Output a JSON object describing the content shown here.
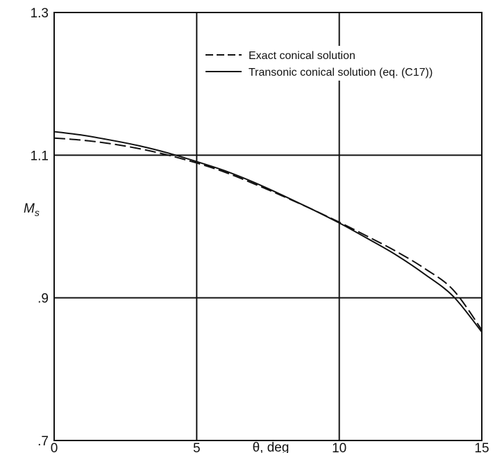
{
  "chart_data": {
    "type": "line",
    "title": "",
    "xlabel": "θ, deg",
    "ylabel": "M_s",
    "xlim": [
      0,
      15
    ],
    "ylim": [
      0.7,
      1.3
    ],
    "x_ticks": [
      {
        "value": 0,
        "label": "0"
      },
      {
        "value": 5,
        "label": "5"
      },
      {
        "value": 10,
        "label": "10"
      },
      {
        "value": 15,
        "label": "15"
      }
    ],
    "y_ticks": [
      {
        "value": 0.7,
        "label": ".7"
      },
      {
        "value": 0.9,
        "label": ".9"
      },
      {
        "value": 1.1,
        "label": "1.1"
      },
      {
        "value": 1.3,
        "label": "1.3"
      }
    ],
    "grid": true,
    "legend_position": "top-right",
    "series": [
      {
        "name": "Exact conical solution",
        "line_style": "dashed",
        "x": [
          0,
          1,
          2,
          3,
          4,
          5,
          6,
          7,
          8,
          9,
          10,
          11,
          12,
          13,
          14,
          15
        ],
        "y": [
          1.124,
          1.121,
          1.116,
          1.109,
          1.1,
          1.089,
          1.076,
          1.06,
          1.043,
          1.025,
          1.006,
          0.986,
          0.965,
          0.941,
          0.911,
          0.855
        ]
      },
      {
        "name": "Transonic conical solution (eq. (C17))",
        "line_style": "solid",
        "x": [
          0,
          1,
          2,
          3,
          4,
          5,
          6,
          7,
          8,
          9,
          10,
          11,
          12,
          13,
          14,
          15
        ],
        "y": [
          1.133,
          1.128,
          1.121,
          1.113,
          1.103,
          1.091,
          1.078,
          1.062,
          1.044,
          1.025,
          1.005,
          0.983,
          0.96,
          0.933,
          0.902,
          0.852
        ]
      }
    ]
  },
  "colors": {
    "line": "#111111",
    "grid": "#111111",
    "background": "#ffffff"
  }
}
